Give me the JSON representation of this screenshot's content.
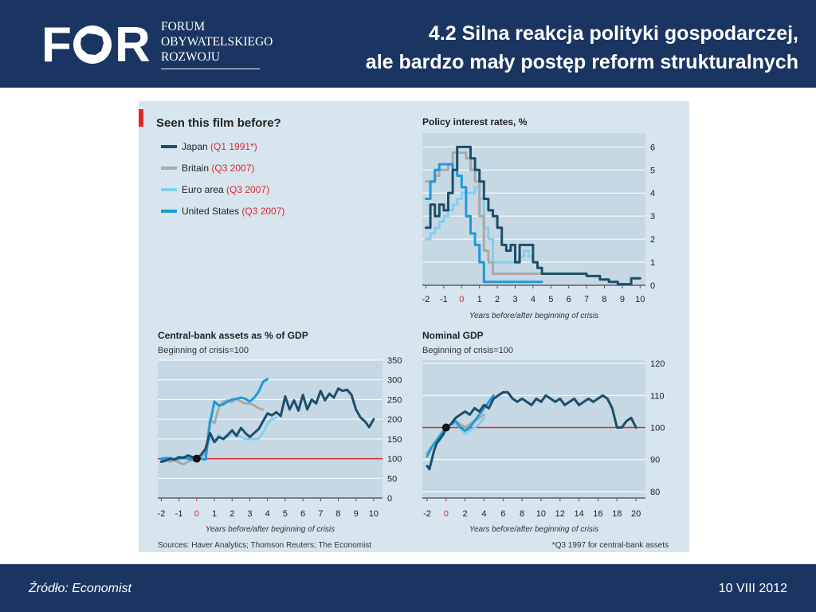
{
  "header": {
    "logo_mark": "FOR",
    "logo_lines": [
      "FORUM",
      "OBYWATELSKIEGO",
      "ROZWOJU"
    ],
    "title_line1": "4.2 Silna reakcja polityki gospodarczej,",
    "title_line2": "ale bardzo mały postęp reform strukturalnych"
  },
  "footer": {
    "source": "Źródło: Economist",
    "date": "10 VIII 2012"
  },
  "figure": {
    "title": "Seen this film before?",
    "source_note": "Sources: Haver Analytics; Thomson Reuters; The Economist",
    "footnote": "*Q3 1997 for central-bank assets",
    "legend": [
      {
        "name": "Japan",
        "period": "(Q1 1991*)",
        "color": "#1d4e6b"
      },
      {
        "name": "Britain",
        "period": "(Q3 2007)",
        "color": "#a9aaaa"
      },
      {
        "name": "Euro area",
        "period": "(Q3 2007)",
        "color": "#84cfee"
      },
      {
        "name": "United States",
        "period": "(Q3 2007)",
        "color": "#1f9ad6"
      }
    ],
    "colors": {
      "background": "#d6e5ee",
      "panel": "#c5d8e4",
      "baseline": "#e0262d",
      "accent": "#e0262d"
    }
  },
  "chart_data": [
    {
      "type": "line",
      "title": "Policy interest rates, %",
      "subtitle": "",
      "xlabel": "Years before/after beginning of crisis",
      "xlim": [
        -2.2,
        10.3
      ],
      "ylim": [
        0,
        6.6
      ],
      "xticks": [
        -2,
        -1,
        0,
        1,
        2,
        3,
        4,
        5,
        6,
        7,
        8,
        9,
        10
      ],
      "yticks": [
        0,
        1,
        2,
        3,
        4,
        5,
        6
      ],
      "series": [
        {
          "name": "Japan",
          "color": "#1d4e6b",
          "x": [
            -2,
            -1.75,
            -1.75,
            -1.5,
            -1.5,
            -1.25,
            -1.25,
            -1,
            -1,
            -0.75,
            -0.75,
            -0.5,
            -0.5,
            -0.25,
            -0.25,
            0.5,
            0.5,
            0.75,
            0.75,
            1,
            1,
            1.25,
            1.25,
            1.5,
            1.5,
            1.75,
            1.75,
            2,
            2,
            2.25,
            2.25,
            2.5,
            2.5,
            2.75,
            2.75,
            3,
            3,
            3.25,
            3.25,
            4,
            4,
            4.25,
            4.25,
            4.5,
            4.5,
            7,
            7,
            7.75,
            7.75,
            8.25,
            8.25,
            8.75,
            8.75,
            9.5,
            9.5,
            9.75,
            9.75,
            10
          ],
          "y": [
            2.5,
            2.5,
            3.5,
            3.5,
            3.0,
            3.0,
            3.5,
            3.5,
            3.25,
            3.25,
            4.0,
            4.0,
            5.0,
            5.0,
            6.0,
            6.0,
            5.5,
            5.5,
            5.0,
            5.0,
            4.5,
            4.5,
            3.75,
            3.75,
            3.25,
            3.25,
            3.0,
            3.0,
            2.5,
            2.5,
            1.75,
            1.75,
            1.5,
            1.5,
            1.75,
            1.75,
            1.0,
            1.0,
            1.75,
            1.75,
            1.0,
            1.0,
            0.75,
            0.75,
            0.5,
            0.5,
            0.4,
            0.4,
            0.25,
            0.25,
            0.15,
            0.15,
            0.05,
            0.05,
            0.3,
            0.3,
            0.3,
            0.3
          ]
        },
        {
          "name": "Britain",
          "color": "#a9aaaa",
          "x": [
            -2,
            -1.5,
            -1.5,
            -1.25,
            -1.25,
            -0.75,
            -0.75,
            -0.5,
            -0.5,
            0.25,
            0.25,
            0.5,
            0.5,
            0.75,
            0.75,
            1.0,
            1.0,
            1.25,
            1.25,
            1.5,
            1.5,
            1.75,
            1.75,
            4.5
          ],
          "y": [
            4.5,
            4.5,
            4.75,
            4.75,
            5.0,
            5.0,
            5.25,
            5.25,
            5.75,
            5.75,
            5.5,
            5.5,
            5.0,
            5.0,
            4.5,
            4.5,
            3.0,
            3.0,
            1.5,
            1.5,
            1.0,
            1.0,
            0.5,
            0.5
          ]
        },
        {
          "name": "Euro area",
          "color": "#84cfee",
          "x": [
            -2,
            -1.75,
            -1.75,
            -1.5,
            -1.5,
            -1.25,
            -1.25,
            -1.0,
            -1.0,
            -0.75,
            -0.75,
            -0.5,
            -0.5,
            -0.25,
            -0.25,
            0.0,
            0.0,
            0.75,
            0.75,
            1.0,
            1.0,
            1.25,
            1.25,
            1.5,
            1.5,
            1.75,
            1.75,
            3.25,
            3.25,
            3.5,
            3.5,
            3.75,
            3.75,
            4.0
          ],
          "y": [
            2.0,
            2.0,
            2.25,
            2.25,
            2.5,
            2.5,
            2.75,
            2.75,
            3.0,
            3.0,
            3.25,
            3.25,
            3.5,
            3.5,
            3.75,
            3.75,
            4.0,
            4.0,
            4.25,
            4.25,
            3.75,
            3.75,
            2.5,
            2.5,
            2.0,
            2.0,
            1.0,
            1.0,
            1.25,
            1.25,
            1.5,
            1.5,
            1.25,
            1.25
          ]
        },
        {
          "name": "United States",
          "color": "#1f9ad6",
          "x": [
            -2,
            -1.75,
            -1.75,
            -1.5,
            -1.5,
            -1.25,
            -1.25,
            -0.5,
            -0.5,
            -0.25,
            -0.25,
            0.0,
            0.0,
            0.25,
            0.25,
            0.5,
            0.5,
            0.75,
            0.75,
            1.0,
            1.0,
            1.25,
            1.25,
            4.5
          ],
          "y": [
            3.75,
            3.75,
            4.5,
            4.5,
            5.0,
            5.0,
            5.25,
            5.25,
            5.0,
            5.0,
            4.75,
            4.75,
            4.25,
            4.25,
            3.0,
            3.0,
            2.25,
            2.25,
            1.75,
            1.75,
            1.0,
            1.0,
            0.15,
            0.15
          ]
        }
      ],
      "crisis_tick": 0
    },
    {
      "type": "line",
      "title": "Central-bank assets as % of GDP",
      "subtitle": "Beginning of crisis=100",
      "xlabel": "Years before/after beginning of crisis",
      "xlim": [
        -2.2,
        10.5
      ],
      "ylim": [
        0,
        350
      ],
      "xticks": [
        -2,
        -1,
        0,
        1,
        2,
        3,
        4,
        5,
        6,
        7,
        8,
        9,
        10
      ],
      "yticks": [
        0,
        50,
        100,
        150,
        200,
        250,
        300,
        350
      ],
      "baseline": 100,
      "marker": {
        "x": 0,
        "y": 100
      },
      "series": [
        {
          "name": "Japan",
          "color": "#1d4e6b",
          "x": [
            -2,
            -1.75,
            -1.5,
            -1.25,
            -1,
            -0.75,
            -0.5,
            -0.25,
            0,
            0.25,
            0.5,
            0.75,
            1,
            1.25,
            1.5,
            1.75,
            2,
            2.25,
            2.5,
            2.75,
            3,
            3.25,
            3.5,
            3.75,
            4,
            4.25,
            4.5,
            4.75,
            5,
            5.25,
            5.5,
            5.75,
            6,
            6.25,
            6.5,
            6.75,
            7,
            7.25,
            7.5,
            7.75,
            8,
            8.25,
            8.5,
            8.75,
            9,
            9.25,
            9.5,
            9.75,
            10
          ],
          "y": [
            92,
            95,
            100,
            98,
            104,
            102,
            108,
            104,
            100,
            110,
            125,
            165,
            142,
            155,
            150,
            160,
            172,
            158,
            178,
            165,
            155,
            165,
            175,
            195,
            215,
            210,
            218,
            208,
            258,
            225,
            248,
            222,
            262,
            225,
            250,
            240,
            272,
            248,
            265,
            255,
            278,
            272,
            275,
            262,
            225,
            205,
            195,
            180,
            200
          ]
        },
        {
          "name": "Britain",
          "color": "#a9aaaa",
          "x": [
            -2,
            -1.75,
            -1.5,
            -1.25,
            -1,
            -0.75,
            -0.5,
            -0.25,
            0,
            0.25,
            0.5,
            0.75,
            1,
            1.25,
            1.5,
            1.75,
            2,
            2.25,
            2.5,
            2.75,
            3,
            3.25,
            3.5,
            3.75
          ],
          "y": [
            95,
            98,
            92,
            96,
            90,
            86,
            92,
            96,
            100,
            104,
            115,
            200,
            190,
            230,
            245,
            248,
            244,
            252,
            245,
            240,
            240,
            235,
            228,
            225
          ]
        },
        {
          "name": "Euro area",
          "color": "#84cfee",
          "x": [
            -2,
            -1.75,
            -1.5,
            -1.25,
            -1,
            -0.75,
            -0.5,
            -0.25,
            0,
            0.25,
            0.5,
            0.75,
            1,
            1.25,
            1.5,
            1.75,
            2,
            2.25,
            2.5,
            2.75,
            3,
            3.25,
            3.5,
            3.75,
            4,
            4.25,
            4.5
          ],
          "y": [
            100,
            98,
            104,
            100,
            96,
            102,
            104,
            100,
            100,
            106,
            118,
            150,
            145,
            160,
            150,
            155,
            165,
            158,
            155,
            150,
            150,
            150,
            150,
            165,
            190,
            200,
            205
          ]
        },
        {
          "name": "United States",
          "color": "#1f9ad6",
          "x": [
            -2,
            -1.75,
            -1.5,
            -1.25,
            -1,
            -0.75,
            -0.5,
            -0.25,
            0,
            0.25,
            0.5,
            0.75,
            1,
            1.25,
            1.5,
            1.75,
            2,
            2.25,
            2.5,
            2.75,
            3,
            3.25,
            3.5,
            3.75,
            4
          ],
          "y": [
            100,
            102,
            100,
            98,
            100,
            104,
            100,
            98,
            100,
            100,
            98,
            190,
            245,
            235,
            238,
            245,
            250,
            252,
            255,
            252,
            245,
            255,
            270,
            295,
            302
          ]
        }
      ],
      "crisis_tick": 0
    },
    {
      "type": "line",
      "title": "Nominal GDP",
      "subtitle": "Beginning of crisis=100",
      "xlabel": "Years before/after beginning of crisis",
      "xlim": [
        -2.5,
        21
      ],
      "ylim": [
        78,
        121
      ],
      "xticks": [
        -2,
        0,
        2,
        4,
        6,
        8,
        10,
        12,
        14,
        16,
        18,
        20
      ],
      "yticks": [
        80,
        90,
        100,
        110,
        120
      ],
      "baseline": 100,
      "marker": {
        "x": 0,
        "y": 100
      },
      "series": [
        {
          "name": "Japan",
          "color": "#1d4e6b",
          "x": [
            -2,
            -1.75,
            -1.5,
            -1.25,
            -1,
            -0.75,
            -0.5,
            -0.25,
            0,
            0.5,
            1,
            1.5,
            2,
            2.5,
            3,
            3.5,
            4,
            4.5,
            5,
            5.5,
            6,
            6.5,
            7,
            7.5,
            8,
            8.5,
            9,
            9.5,
            10,
            10.5,
            11,
            11.5,
            12,
            12.5,
            13,
            13.5,
            14,
            14.5,
            15,
            15.5,
            16,
            16.5,
            17,
            17.5,
            18,
            18.5,
            19,
            19.5,
            20
          ],
          "y": [
            88,
            87,
            90,
            93,
            95,
            96,
            97,
            98,
            100,
            101,
            103,
            104,
            105,
            104,
            106,
            105,
            107,
            106,
            109,
            110,
            111,
            111,
            109,
            108,
            109,
            108,
            107,
            109,
            108,
            110,
            109,
            108,
            109,
            107,
            108,
            109,
            107,
            108,
            109,
            108,
            109,
            110,
            109,
            106,
            100,
            100,
            102,
            103,
            100
          ]
        },
        {
          "name": "Britain",
          "color": "#a9aaaa",
          "x": [
            -2,
            -1.5,
            -1,
            -0.5,
            0,
            0.5,
            1,
            1.5,
            2,
            2.5,
            3,
            3.5,
            4
          ],
          "y": [
            92,
            94,
            96,
            98,
            100,
            101,
            102,
            101,
            100,
            101,
            102,
            103,
            104
          ]
        },
        {
          "name": "Euro area",
          "color": "#84cfee",
          "x": [
            -2,
            -1.5,
            -1,
            -0.5,
            0,
            0.5,
            1,
            1.5,
            2,
            2.5,
            3,
            3.5,
            4
          ],
          "y": [
            92,
            94,
            96,
            98,
            100,
            101,
            101,
            100,
            98,
            99,
            100,
            101,
            103
          ]
        },
        {
          "name": "United States",
          "color": "#1f9ad6",
          "x": [
            -2,
            -1.5,
            -1,
            -0.5,
            0,
            0.5,
            1,
            1.5,
            2,
            2.5,
            3,
            3.5,
            4,
            4.5,
            5
          ],
          "y": [
            91,
            94,
            96,
            98,
            100,
            101,
            102,
            100,
            99,
            100,
            102,
            104,
            106,
            108,
            110
          ]
        }
      ],
      "crisis_tick": 0
    }
  ]
}
